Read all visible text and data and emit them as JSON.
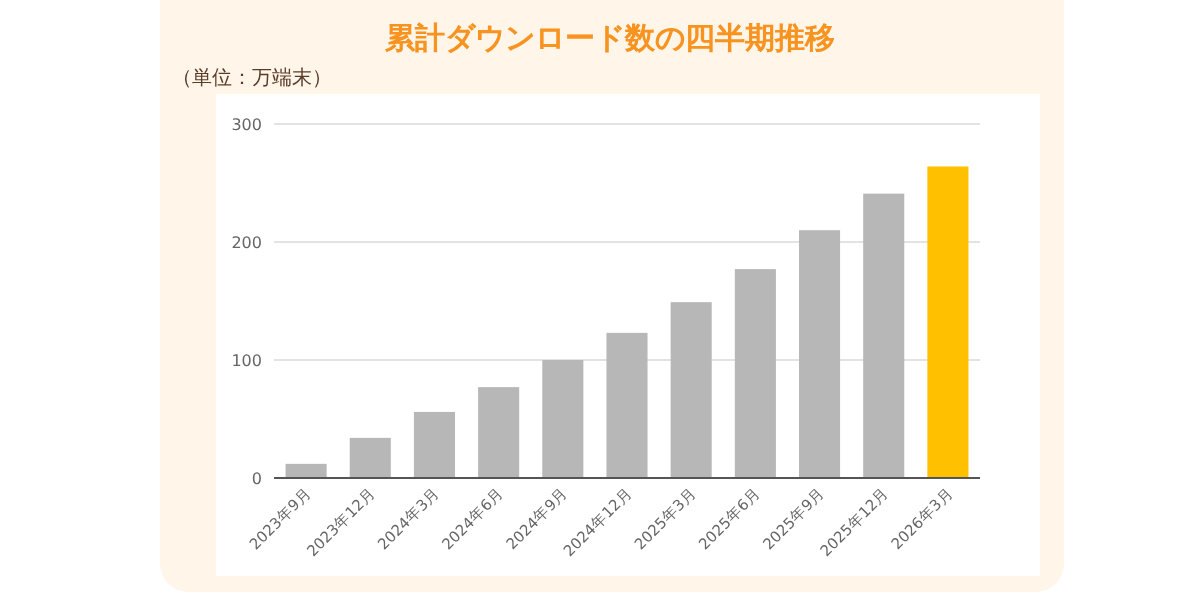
{
  "chart_data": {
    "type": "bar",
    "title": "累計ダウンロード数の四半期推移",
    "ylabel": "（単位：万端末）",
    "categories": [
      "2023年9月",
      "2023年12月",
      "2024年3月",
      "2024年6月",
      "2024年9月",
      "2024年12月",
      "2025年3月",
      "2025年6月",
      "2025年9月",
      "2025年12月",
      "2026年3月"
    ],
    "values": [
      12,
      34,
      56,
      77,
      100,
      123,
      149,
      177,
      210,
      241,
      264
    ],
    "colors": [
      "#b7b7b7",
      "#b7b7b7",
      "#b7b7b7",
      "#b7b7b7",
      "#b7b7b7",
      "#b7b7b7",
      "#b7b7b7",
      "#b7b7b7",
      "#b7b7b7",
      "#b7b7b7",
      "#ffc000"
    ],
    "ylim": [
      0,
      300
    ],
    "yticks": [
      0,
      100,
      200,
      300
    ],
    "grid": "y"
  }
}
